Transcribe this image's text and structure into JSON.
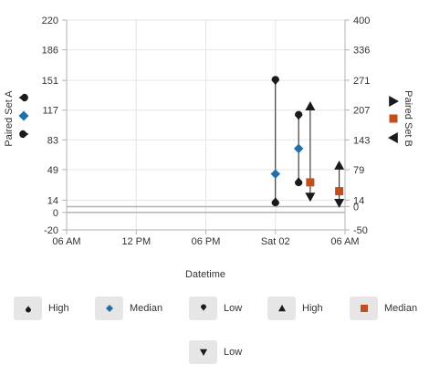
{
  "chart_data": {
    "type": "line",
    "xlabel": "Datetime",
    "x_ticks": [
      "06 AM",
      "12 PM",
      "06 PM",
      "Sat 02",
      "06 AM"
    ],
    "y_left": {
      "label": "Paired Set A",
      "range": [
        -20,
        220
      ],
      "ticks": [
        220,
        186,
        151,
        117,
        83,
        49,
        14,
        0,
        -20
      ]
    },
    "y_right": {
      "label": "Paired Set B",
      "range": [
        -50,
        400
      ],
      "ticks": [
        400,
        336,
        271,
        207,
        143,
        79,
        14,
        0,
        -50
      ]
    },
    "x_range": [
      "Fri 01 06:00",
      "Sat 02 06:00"
    ],
    "series_a": {
      "high_label": "High",
      "median_label": "Median",
      "low_label": "Low",
      "points": [
        {
          "x": "Sat 02 00:00",
          "high": 151,
          "median": 44,
          "low": 12
        },
        {
          "x": "Sat 02 02:00",
          "high": 111,
          "median": 73,
          "low": 35
        }
      ]
    },
    "series_b": {
      "high_label": "High",
      "median_label": "Median",
      "low_label": "Low",
      "points": [
        {
          "x": "Sat 02 03:00",
          "high": 215,
          "median": 52,
          "low": 21
        },
        {
          "x": "Sat 02 05:30",
          "high": 88,
          "median": 33,
          "low": 8
        }
      ]
    },
    "colors": {
      "marker": "#1a1a1a",
      "median_a": "#1f6fa8",
      "median_b": "#c2501a",
      "grid": "#e6e6e6",
      "axis": "#b3b3b3"
    },
    "grid": true,
    "legend_position": "bottom"
  }
}
